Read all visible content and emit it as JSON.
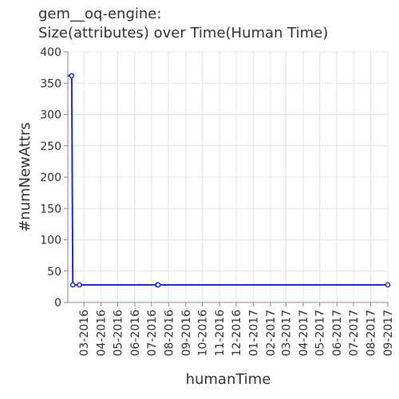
{
  "chart_data": {
    "type": "line",
    "title_line1": "gem__oq-engine:",
    "title_line2": "Size(attributes) over Time(Human Time)",
    "xlabel": "humanTime",
    "ylabel": "#numNewAttrs",
    "ylim": [
      0,
      400
    ],
    "yticks": [
      0,
      50,
      100,
      150,
      200,
      250,
      300,
      350,
      400
    ],
    "xlim": [
      "2016-02-01",
      "2017-09-01"
    ],
    "xticks": [
      "03-2016",
      "04-2016",
      "05-2016",
      "06-2016",
      "07-2016",
      "08-2016",
      "09-2016",
      "10-2016",
      "11-2016",
      "12-2016",
      "01-2017",
      "02-2017",
      "03-2017",
      "04-2017",
      "05-2017",
      "06-2017",
      "07-2017",
      "08-2017",
      "09-2017"
    ],
    "grid": true,
    "series": [
      {
        "color": "#1f2fd6",
        "points": [
          {
            "x": "2016-02-01",
            "y": 362
          },
          {
            "x": "2016-02-08",
            "y": 362
          },
          {
            "x": "2016-02-10",
            "y": 28
          },
          {
            "x": "2016-02-22",
            "y": 28
          },
          {
            "x": "2016-07-12",
            "y": 28
          },
          {
            "x": "2016-07-13",
            "y": 28
          },
          {
            "x": "2017-09-01",
            "y": 28
          }
        ],
        "markers": [
          "2016-02-08",
          "2016-02-10",
          "2016-02-22",
          "2016-07-12",
          "2016-07-13",
          "2017-09-01"
        ]
      }
    ]
  }
}
